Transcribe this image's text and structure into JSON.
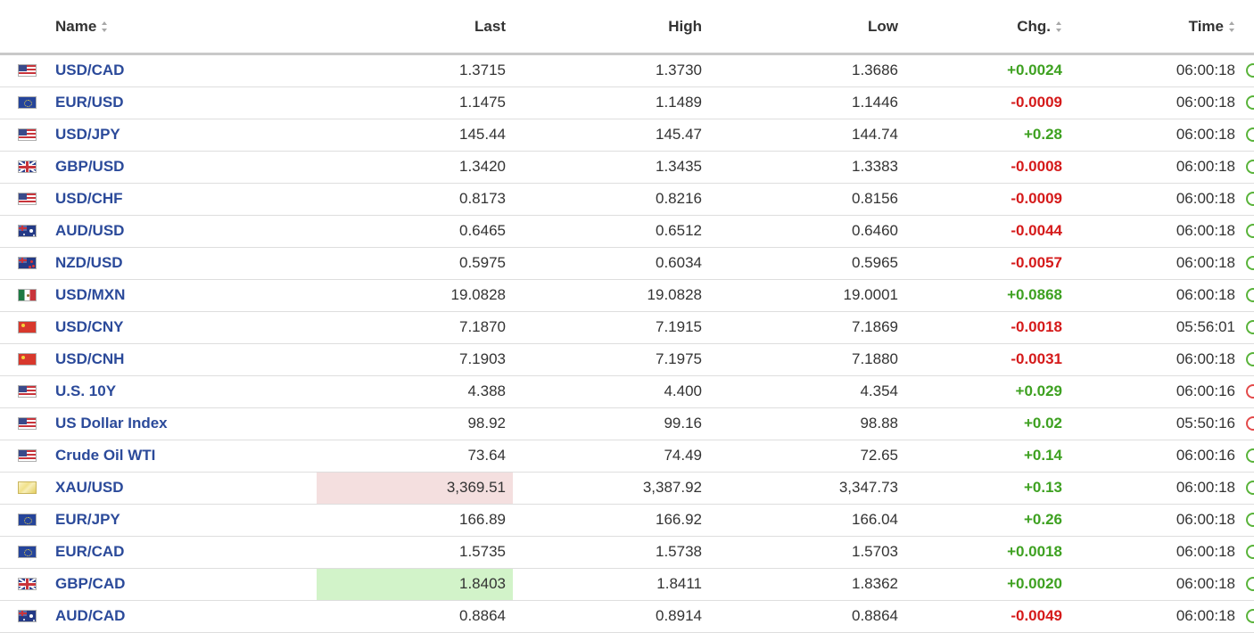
{
  "columns": {
    "name": "Name",
    "last": "Last",
    "high": "High",
    "low": "Low",
    "chg": "Chg.",
    "time": "Time"
  },
  "colors": {
    "name_link": "#2b4a9a",
    "positive": "#3ea121",
    "negative": "#d51a1a",
    "flash_down": "#f4dfdf",
    "flash_up": "#d2f3c9",
    "status_open": "#59b33a",
    "status_closed": "#e34a4a"
  },
  "rows": [
    {
      "flag": "us-flag-icon",
      "name": "USD/CAD",
      "last": "1.3715",
      "high": "1.3730",
      "low": "1.3686",
      "chg": "+0.0024",
      "direction": "up",
      "time": "06:00:18",
      "status": "open",
      "flash": "none"
    },
    {
      "flag": "eu-flag-icon",
      "name": "EUR/USD",
      "last": "1.1475",
      "high": "1.1489",
      "low": "1.1446",
      "chg": "-0.0009",
      "direction": "down",
      "time": "06:00:18",
      "status": "open",
      "flash": "none"
    },
    {
      "flag": "us-flag-icon",
      "name": "USD/JPY",
      "last": "145.44",
      "high": "145.47",
      "low": "144.74",
      "chg": "+0.28",
      "direction": "up",
      "time": "06:00:18",
      "status": "open",
      "flash": "none"
    },
    {
      "flag": "gb-flag-icon",
      "name": "GBP/USD",
      "last": "1.3420",
      "high": "1.3435",
      "low": "1.3383",
      "chg": "-0.0008",
      "direction": "down",
      "time": "06:00:18",
      "status": "open",
      "flash": "none"
    },
    {
      "flag": "us-flag-icon",
      "name": "USD/CHF",
      "last": "0.8173",
      "high": "0.8216",
      "low": "0.8156",
      "chg": "-0.0009",
      "direction": "down",
      "time": "06:00:18",
      "status": "open",
      "flash": "none"
    },
    {
      "flag": "au-flag-icon",
      "name": "AUD/USD",
      "last": "0.6465",
      "high": "0.6512",
      "low": "0.6460",
      "chg": "-0.0044",
      "direction": "down",
      "time": "06:00:18",
      "status": "open",
      "flash": "none"
    },
    {
      "flag": "nz-flag-icon",
      "name": "NZD/USD",
      "last": "0.5975",
      "high": "0.6034",
      "low": "0.5965",
      "chg": "-0.0057",
      "direction": "down",
      "time": "06:00:18",
      "status": "open",
      "flash": "none"
    },
    {
      "flag": "mx-flag-icon",
      "name": "USD/MXN",
      "last": "19.0828",
      "high": "19.0828",
      "low": "19.0001",
      "chg": "+0.0868",
      "direction": "up",
      "time": "06:00:18",
      "status": "open",
      "flash": "none"
    },
    {
      "flag": "cn-flag-icon",
      "name": "USD/CNY",
      "last": "7.1870",
      "high": "7.1915",
      "low": "7.1869",
      "chg": "-0.0018",
      "direction": "down",
      "time": "05:56:01",
      "status": "open",
      "flash": "none"
    },
    {
      "flag": "cn-flag-icon",
      "name": "USD/CNH",
      "last": "7.1903",
      "high": "7.1975",
      "low": "7.1880",
      "chg": "-0.0031",
      "direction": "down",
      "time": "06:00:18",
      "status": "open",
      "flash": "none"
    },
    {
      "flag": "us-flag-icon",
      "name": "U.S. 10Y",
      "last": "4.388",
      "high": "4.400",
      "low": "4.354",
      "chg": "+0.029",
      "direction": "up",
      "time": "06:00:16",
      "status": "closed",
      "flash": "none"
    },
    {
      "flag": "us-flag-icon",
      "name": "US Dollar Index",
      "last": "98.92",
      "high": "99.16",
      "low": "98.88",
      "chg": "+0.02",
      "direction": "up",
      "time": "05:50:16",
      "status": "closed",
      "flash": "none"
    },
    {
      "flag": "us-flag-icon",
      "name": "Crude Oil WTI",
      "last": "73.64",
      "high": "74.49",
      "low": "72.65",
      "chg": "+0.14",
      "direction": "up",
      "time": "06:00:16",
      "status": "open",
      "flash": "none"
    },
    {
      "flag": "gold-bar-icon",
      "name": "XAU/USD",
      "last": "3,369.51",
      "high": "3,387.92",
      "low": "3,347.73",
      "chg": "+0.13",
      "direction": "up",
      "time": "06:00:18",
      "status": "open",
      "flash": "down"
    },
    {
      "flag": "eu-flag-icon",
      "name": "EUR/JPY",
      "last": "166.89",
      "high": "166.92",
      "low": "166.04",
      "chg": "+0.26",
      "direction": "up",
      "time": "06:00:18",
      "status": "open",
      "flash": "none"
    },
    {
      "flag": "eu-flag-icon",
      "name": "EUR/CAD",
      "last": "1.5735",
      "high": "1.5738",
      "low": "1.5703",
      "chg": "+0.0018",
      "direction": "up",
      "time": "06:00:18",
      "status": "open",
      "flash": "none"
    },
    {
      "flag": "gb-flag-icon",
      "name": "GBP/CAD",
      "last": "1.8403",
      "high": "1.8411",
      "low": "1.8362",
      "chg": "+0.0020",
      "direction": "up",
      "time": "06:00:18",
      "status": "open",
      "flash": "up"
    },
    {
      "flag": "au-flag-icon",
      "name": "AUD/CAD",
      "last": "0.8864",
      "high": "0.8914",
      "low": "0.8864",
      "chg": "-0.0049",
      "direction": "down",
      "time": "06:00:18",
      "status": "open",
      "flash": "none"
    }
  ]
}
